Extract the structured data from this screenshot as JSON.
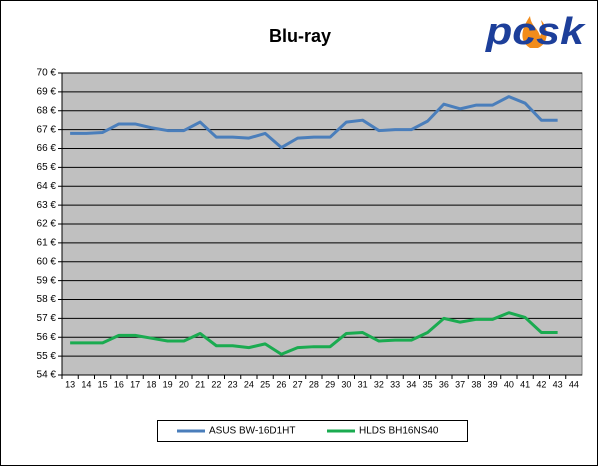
{
  "chart_data": {
    "type": "line",
    "title": "Blu-ray",
    "logo": "pcsk",
    "categories": [
      "13",
      "14",
      "15",
      "16",
      "17",
      "18",
      "19",
      "20",
      "21",
      "22",
      "23",
      "24",
      "25",
      "26",
      "27",
      "28",
      "29",
      "30",
      "31",
      "32",
      "33",
      "34",
      "35",
      "36",
      "37",
      "38",
      "39",
      "40",
      "41",
      "42",
      "43",
      "44"
    ],
    "series": [
      {
        "name": "ASUS BW-16D1HT",
        "color": "#4a7ebb",
        "values": [
          66.8,
          66.8,
          66.85,
          67.3,
          67.3,
          67.1,
          66.95,
          66.95,
          67.4,
          66.6,
          66.6,
          66.55,
          66.8,
          66.05,
          66.55,
          66.6,
          66.6,
          67.4,
          67.5,
          66.95,
          67.0,
          67.0,
          67.45,
          68.35,
          68.1,
          68.3,
          68.3,
          68.75,
          68.4,
          67.5,
          67.5,
          null
        ]
      },
      {
        "name": "HLDS BH16NS40",
        "color": "#1aab50",
        "values": [
          55.7,
          55.7,
          55.7,
          56.1,
          56.1,
          55.95,
          55.8,
          55.8,
          56.2,
          55.55,
          55.55,
          55.45,
          55.65,
          55.1,
          55.45,
          55.5,
          55.5,
          56.2,
          56.25,
          55.8,
          55.85,
          55.85,
          56.25,
          57.0,
          56.8,
          56.95,
          56.95,
          57.3,
          57.05,
          56.25,
          56.25,
          null
        ]
      }
    ],
    "ylim": [
      54,
      70
    ],
    "yticks": [
      {
        "value": 54,
        "label": "54 €"
      },
      {
        "value": 55,
        "label": "55 €"
      },
      {
        "value": 56,
        "label": "56 €"
      },
      {
        "value": 57,
        "label": "57 €"
      },
      {
        "value": 58,
        "label": "58 €"
      },
      {
        "value": 59,
        "label": "59 €"
      },
      {
        "value": 60,
        "label": "60 €"
      },
      {
        "value": 61,
        "label": "61 €"
      },
      {
        "value": 62,
        "label": "62 €"
      },
      {
        "value": 63,
        "label": "63 €"
      },
      {
        "value": 64,
        "label": "64 €"
      },
      {
        "value": 65,
        "label": "65 €"
      },
      {
        "value": 66,
        "label": "66 €"
      },
      {
        "value": 67,
        "label": "67 €"
      },
      {
        "value": 68,
        "label": "68 €"
      },
      {
        "value": 69,
        "label": "69 €"
      },
      {
        "value": 70,
        "label": "70 €"
      }
    ],
    "grid": true,
    "legend": "bottom"
  }
}
